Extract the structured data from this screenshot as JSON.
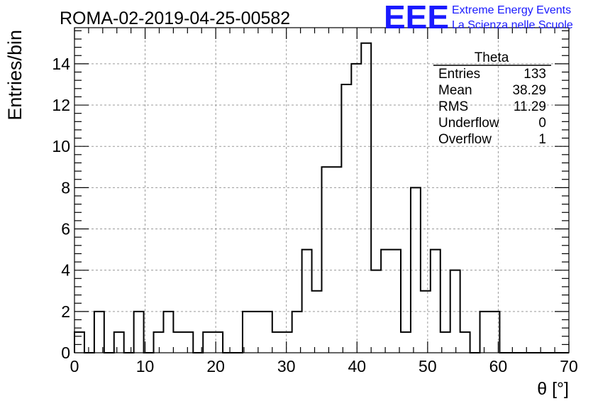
{
  "header": {
    "title": "ROMA-02-2019-04-25-00582",
    "logo_text": "EEE",
    "logo_line1": "Extreme Energy Events",
    "logo_line2": "La Scienza nelle Scuole",
    "logo_color": "#1a1aff"
  },
  "stats": {
    "title": "Theta",
    "rows": [
      {
        "label": "Entries",
        "value": "133"
      },
      {
        "label": "Mean",
        "value": "38.29"
      },
      {
        "label": "RMS",
        "value": "11.29"
      },
      {
        "label": "Underflow",
        "value": "0"
      },
      {
        "label": "Overflow",
        "value": "1"
      }
    ]
  },
  "chart_data": {
    "type": "histogram",
    "title": "ROMA-02-2019-04-25-00582",
    "xlabel": "θ [°]",
    "ylabel": "Entries/bin",
    "xlim": [
      0,
      70
    ],
    "ylim": [
      0,
      15.75
    ],
    "xticks": [
      0,
      10,
      20,
      30,
      40,
      50,
      60,
      70
    ],
    "yticks": [
      0,
      2,
      4,
      6,
      8,
      10,
      12,
      14
    ],
    "grid": true,
    "bin_width": 1.4,
    "bin_edges_start": 0,
    "values": [
      1,
      0,
      2,
      0,
      1,
      0,
      2,
      0,
      1,
      2,
      1,
      1,
      0,
      1,
      1,
      0,
      0,
      2,
      2,
      2,
      1,
      1,
      2,
      5,
      3,
      9,
      9,
      13,
      14,
      15,
      4,
      5,
      5,
      1,
      8,
      3,
      5,
      1,
      4,
      1,
      0,
      2,
      2,
      0,
      0,
      0,
      0,
      0,
      0,
      0
    ]
  }
}
